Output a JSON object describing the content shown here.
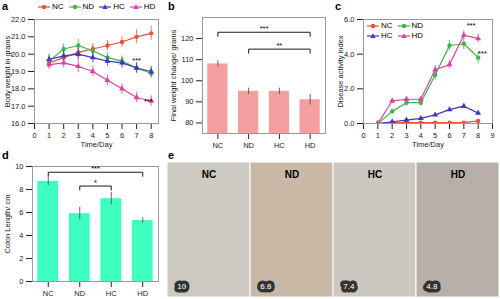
{
  "chart_data": [
    {
      "type": "line",
      "title": "a",
      "x": [
        1,
        2,
        3,
        4,
        5,
        6,
        7,
        8
      ],
      "xlabel": "Time/Day",
      "ylabel": "Body weight in grams",
      "xlim": [
        0,
        8.5
      ],
      "xticks": [
        0,
        1,
        2,
        3,
        4,
        5,
        6,
        7,
        8
      ],
      "ylim": [
        16,
        22
      ],
      "yticks": [
        16,
        17,
        18,
        19,
        20,
        21,
        22
      ],
      "legend": "top",
      "series": [
        {
          "name": "NC",
          "color": "#e8513a",
          "marker": "circle",
          "values": [
            19.5,
            19.8,
            20.1,
            20.3,
            20.5,
            20.7,
            21.0,
            21.2
          ],
          "errors": [
            0.3,
            0.3,
            0.35,
            0.3,
            0.3,
            0.3,
            0.4,
            0.4
          ]
        },
        {
          "name": "ND",
          "color": "#3cb54a",
          "marker": "circle",
          "values": [
            19.6,
            20.3,
            20.5,
            20.2,
            19.8,
            19.6,
            19.2,
            18.9
          ],
          "errors": [
            0.3,
            0.3,
            0.35,
            0.3,
            0.3,
            0.3,
            0.3,
            0.3
          ]
        },
        {
          "name": "HC",
          "color": "#3a3abf",
          "marker": "triangle",
          "values": [
            19.7,
            19.9,
            20.0,
            19.8,
            19.6,
            19.5,
            19.2,
            19.0
          ],
          "errors": [
            0.3,
            0.3,
            0.35,
            0.3,
            0.3,
            0.3,
            0.3,
            0.3
          ]
        },
        {
          "name": "HD",
          "color": "#e040a0",
          "marker": "triangle",
          "values": [
            19.4,
            19.5,
            19.3,
            19.0,
            18.5,
            18.0,
            17.5,
            17.3
          ],
          "errors": [
            0.3,
            0.3,
            0.35,
            0.3,
            0.3,
            0.3,
            0.3,
            0.3
          ]
        }
      ],
      "annotations": [
        {
          "x": 7.0,
          "y": 19.5,
          "text": "***"
        },
        {
          "x": 7.8,
          "y": 17.1,
          "text": "***"
        }
      ]
    },
    {
      "type": "bar",
      "title": "b",
      "categories": [
        "NC",
        "ND",
        "HC",
        "HD"
      ],
      "values": [
        108,
        95,
        95,
        91
      ],
      "errors": [
        1.5,
        1.5,
        1.5,
        2.5
      ],
      "color": "#f4a0a0",
      "ylabel": "Final weight change/ grams",
      "ylim": [
        75,
        130
      ],
      "yticks": [
        80,
        90,
        100,
        110,
        120
      ],
      "annotations": [
        {
          "x1": "NC",
          "x2": "HD",
          "y": 123,
          "text": "***"
        },
        {
          "x1": "ND",
          "x2": "HD",
          "y": 115,
          "text": "**"
        }
      ]
    },
    {
      "type": "line",
      "title": "c",
      "x": [
        1,
        2,
        3,
        4,
        5,
        6,
        7,
        8
      ],
      "xlabel": "Time/Day",
      "ylabel": "Disease activity index",
      "xlim": [
        0,
        9
      ],
      "xticks": [
        0,
        1,
        2,
        3,
        4,
        5,
        6,
        7,
        8,
        9
      ],
      "ylim": [
        0,
        6
      ],
      "yticks": [
        0,
        2,
        4,
        6
      ],
      "legend": "top-left",
      "series": [
        {
          "name": "NC",
          "color": "#e8513a",
          "marker": "circle",
          "values": [
            0.0,
            0.05,
            0.05,
            0.05,
            0.05,
            0.05,
            0.05,
            0.15
          ],
          "errors": [
            0.0,
            0.03,
            0.03,
            0.03,
            0.03,
            0.03,
            0.03,
            0.05
          ]
        },
        {
          "name": "ND",
          "color": "#3cb54a",
          "marker": "circle",
          "values": [
            0.0,
            0.7,
            1.2,
            1.2,
            2.8,
            4.5,
            4.6,
            3.8
          ],
          "errors": [
            0.0,
            0.15,
            0.2,
            0.2,
            0.3,
            0.3,
            0.35,
            0.35
          ]
        },
        {
          "name": "HC",
          "color": "#3a3abf",
          "marker": "triangle",
          "values": [
            0.0,
            0.1,
            0.2,
            0.3,
            0.5,
            0.8,
            1.0,
            0.6
          ],
          "errors": [
            0.0,
            0.05,
            0.05,
            0.08,
            0.1,
            0.12,
            0.12,
            0.12
          ]
        },
        {
          "name": "HD",
          "color": "#e040a0",
          "marker": "triangle",
          "values": [
            0.0,
            1.3,
            1.4,
            1.4,
            3.1,
            3.4,
            5.1,
            4.9
          ],
          "errors": [
            0.0,
            0.15,
            0.15,
            0.15,
            0.25,
            0.25,
            0.25,
            0.25
          ]
        }
      ],
      "annotations": [
        {
          "x": 7.5,
          "y": 5.5,
          "text": "***"
        },
        {
          "x": 8.3,
          "y": 3.9,
          "text": "***"
        }
      ]
    },
    {
      "type": "bar",
      "title": "d",
      "categories": [
        "NC",
        "ND",
        "HC",
        "HD"
      ],
      "values": [
        8.7,
        5.9,
        7.2,
        5.3
      ],
      "errors": [
        0.35,
        0.55,
        0.55,
        0.25
      ],
      "color": "#3dffc0",
      "ylabel": "Colon Length/ cm",
      "ylim": [
        0,
        10
      ],
      "yticks": [
        0,
        2,
        4,
        6,
        8,
        10
      ],
      "annotations": [
        {
          "x1": "NC",
          "x2": "HD",
          "y": 9.5,
          "text": "***"
        },
        {
          "x1": "ND",
          "x2": "HC",
          "y": 8.3,
          "text": "*"
        }
      ]
    },
    {
      "type": "image",
      "title": "e",
      "categories": [
        "NC",
        "ND",
        "HC",
        "HD"
      ],
      "values": [
        10,
        6.6,
        7.4,
        4.8
      ],
      "colors": [
        "#cdc8c0",
        "#c8b8a5",
        "#ccc8c0",
        "#b8b0a8"
      ],
      "data_labels": true,
      "tick_labels": false
    }
  ]
}
